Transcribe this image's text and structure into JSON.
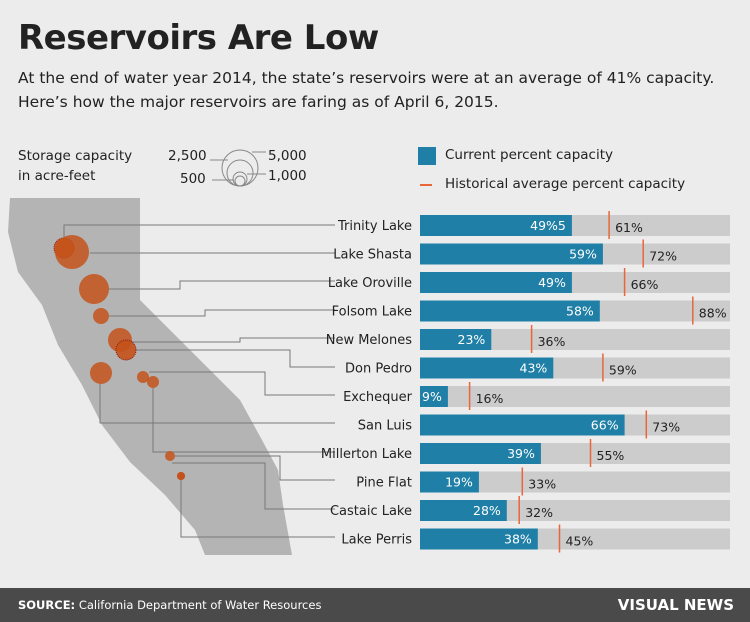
{
  "title": "Reservoirs Are Low",
  "subtitle": "At the end of water year 2014, the state’s reservoirs were at an average of 41% capacity. Here’s how the major reservoirs are faring as of April 6, 2015.",
  "size_legend": {
    "label_line1": "Storage capacity",
    "label_line2": "in acre-feet",
    "values": [
      "2,500",
      "5,000",
      "500",
      "1,000"
    ]
  },
  "legend": {
    "current": "Current percent capacity",
    "historical": "Historical average percent capacity"
  },
  "colors": {
    "current": "#1f7fa6",
    "track": "#cccccc",
    "historical": "#e8663a",
    "circle": "#c4521a",
    "map": "#b4b4b4"
  },
  "chart_data": {
    "type": "bar",
    "categories": [
      "Trinity Lake",
      "Lake Shasta",
      "Lake Oroville",
      "Folsom Lake",
      "New Melones",
      "Don Pedro",
      "Exchequer",
      "San Luis",
      "Millerton Lake",
      "Pine Flat",
      "Castaic Lake",
      "Lake Perris"
    ],
    "series": [
      {
        "name": "Current percent capacity",
        "values": [
          49,
          59,
          49,
          58,
          23,
          43,
          9,
          66,
          39,
          19,
          28,
          38
        ],
        "labels": [
          "49%5",
          "59%",
          "49%",
          "58%",
          "23%",
          "43%",
          "9%",
          "66%",
          "39%",
          "19%",
          "28%",
          "38%"
        ]
      },
      {
        "name": "Historical average percent capacity",
        "values": [
          61,
          72,
          66,
          88,
          36,
          59,
          16,
          73,
          55,
          33,
          32,
          45
        ],
        "labels": [
          "61%",
          "72%",
          "66%",
          "88%",
          "36%",
          "59%",
          "16%",
          "73%",
          "55%",
          "33%",
          "32%",
          "45%"
        ]
      }
    ],
    "xlim": [
      0,
      100
    ]
  },
  "footer": {
    "source_label": "SOURCE:",
    "source": "California Department of Water Resources",
    "brand": "VISUAL NEWS"
  }
}
